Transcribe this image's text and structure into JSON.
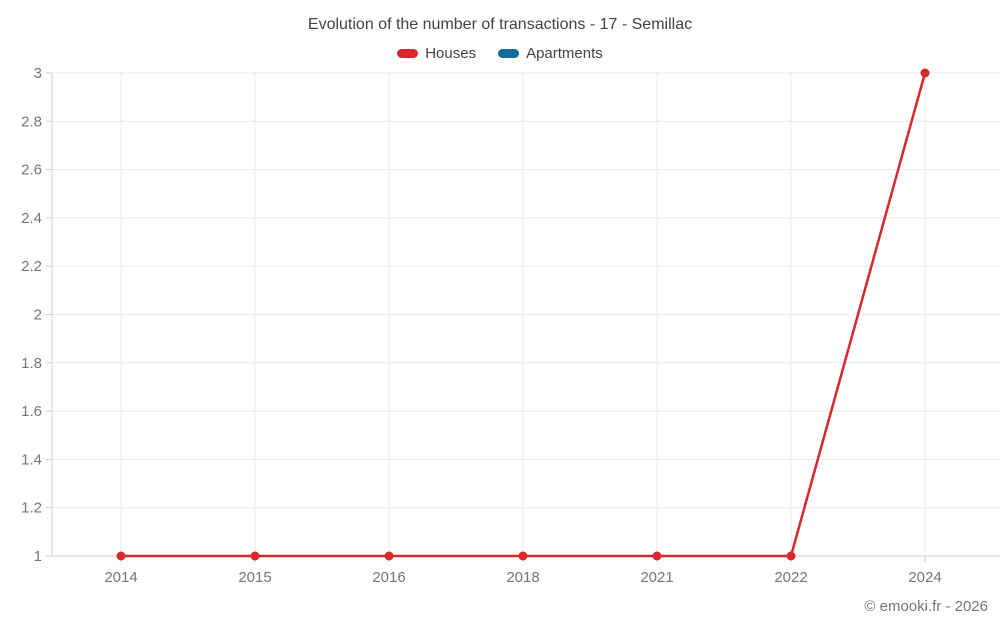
{
  "title": "Evolution of the number of transactions - 17 - Semillac",
  "legend": {
    "items": [
      {
        "label": "Houses",
        "color": "#d7282e"
      },
      {
        "label": "Apartments",
        "color": "#17699c"
      }
    ]
  },
  "footer": {
    "credit": "© emooki.fr - 2026"
  },
  "colors": {
    "grid": "#e9e9e9",
    "axis": "#cfcfcf",
    "tick_text": "#757575",
    "title_text": "#434343"
  },
  "chart_data": {
    "type": "line",
    "title": "Evolution of the number of transactions - 17 - Semillac",
    "x": [
      "2014",
      "2015",
      "2016",
      "2018",
      "2021",
      "2022",
      "2024"
    ],
    "series": [
      {
        "name": "Houses",
        "color": "#d7282e",
        "values": [
          1,
          1,
          1,
          1,
          1,
          1,
          3
        ]
      },
      {
        "name": "Apartments",
        "color": "#17699c",
        "values": []
      }
    ],
    "xlabel": "",
    "ylabel": "",
    "ylim": [
      1,
      3
    ],
    "yticks": [
      1,
      1.2,
      1.4,
      1.6,
      1.8,
      2,
      2.2,
      2.4,
      2.6,
      2.8,
      3
    ],
    "grid": true,
    "legend_position": "top"
  }
}
